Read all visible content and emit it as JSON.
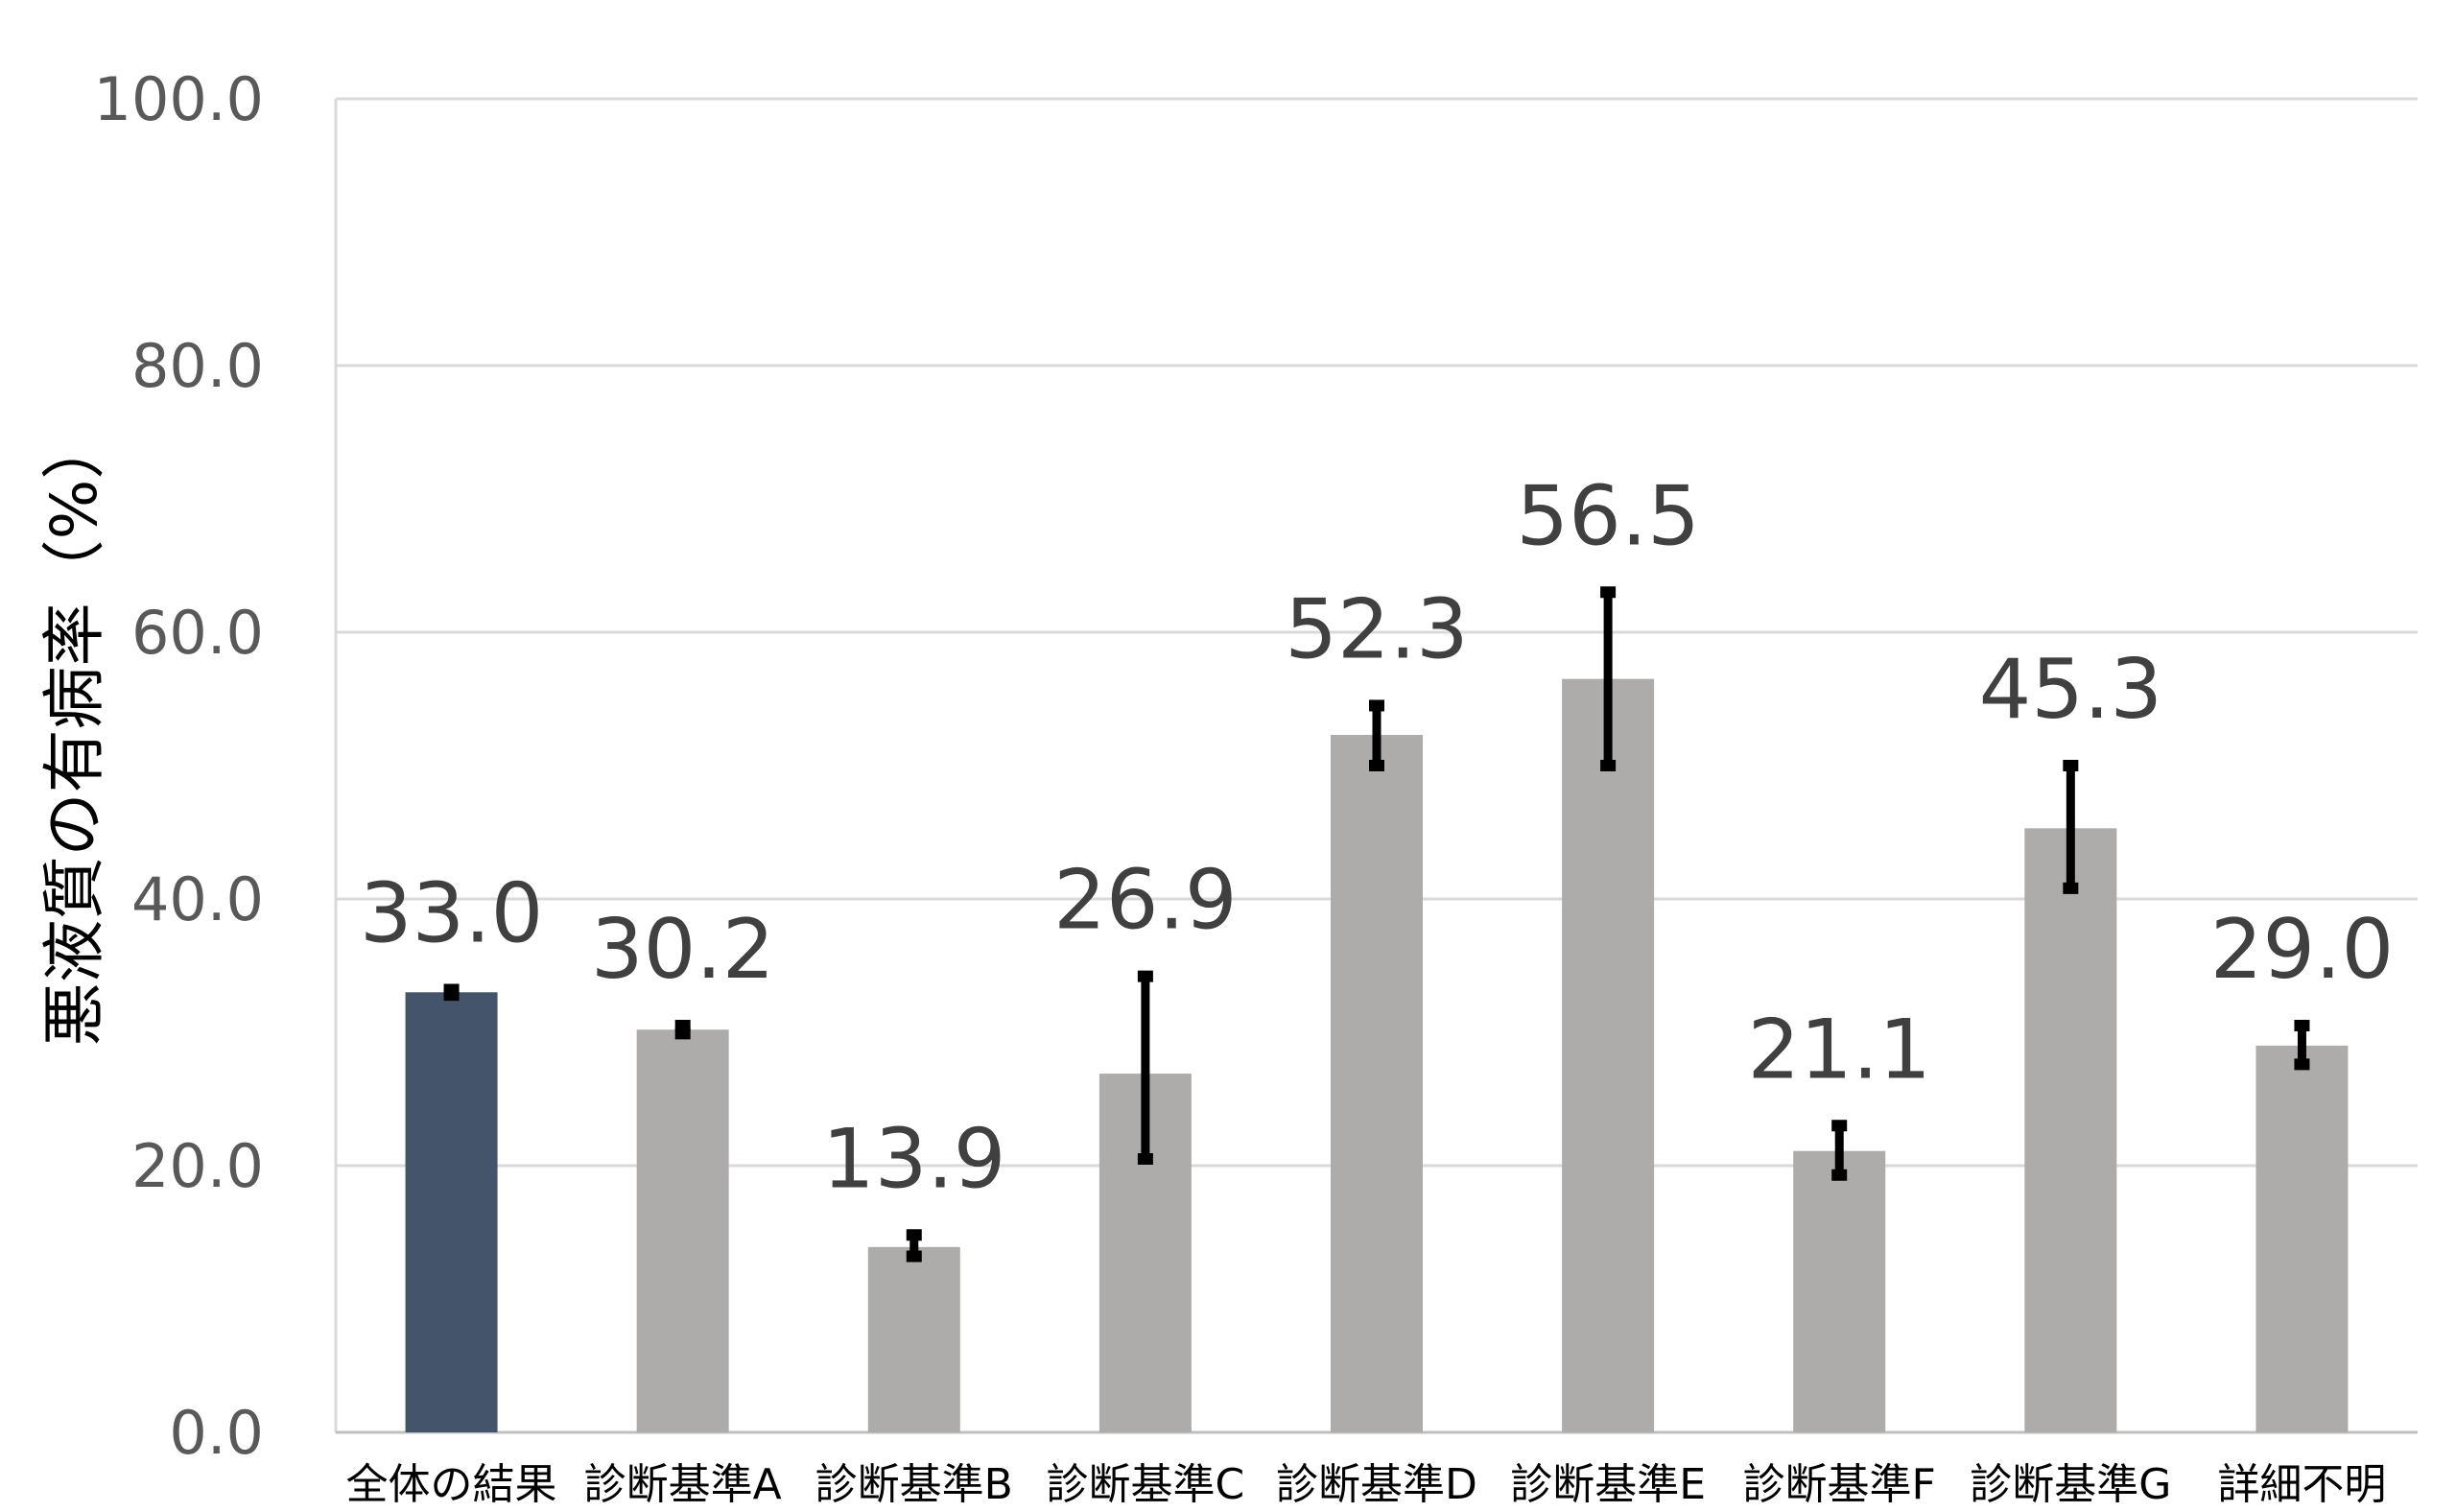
{
  "chart_data": {
    "type": "bar",
    "title": "",
    "xlabel": "",
    "ylabel": "悪液質の有病率（%）",
    "ylim": [
      0,
      100
    ],
    "yticks": [
      0,
      20,
      40,
      60,
      80,
      100
    ],
    "ytick_labels": [
      "0.0",
      "20.0",
      "40.0",
      "60.0",
      "80.0",
      "100.0"
    ],
    "grid": true,
    "categories": [
      "全体の結果",
      "診断基準A",
      "診断基準B",
      "診断基準C",
      "診断基準D",
      "診断基準E",
      "診断基準F",
      "診断基準G",
      "詳細不明"
    ],
    "values": [
      33.0,
      30.2,
      13.9,
      26.9,
      52.3,
      56.5,
      21.1,
      45.3,
      29.0
    ],
    "value_labels": [
      "33.0",
      "30.2",
      "13.9",
      "26.9",
      "52.3",
      "56.5",
      "21.1",
      "45.3",
      "29.0"
    ],
    "error_low": [
      32.8,
      29.9,
      13.2,
      20.5,
      50.0,
      50.0,
      19.3,
      40.8,
      27.6
    ],
    "error_high": [
      33.2,
      30.5,
      14.8,
      34.2,
      54.5,
      63.0,
      23.0,
      50.0,
      30.5
    ],
    "bar_colors": [
      "#44546a",
      "#aeabab",
      "#aeabab",
      "#aeabab",
      "#aeabab",
      "#aeabab",
      "#aeabab",
      "#aeabab",
      "#aeabab"
    ],
    "error_color": "#000000",
    "grid_color": "#d9d9d9"
  }
}
